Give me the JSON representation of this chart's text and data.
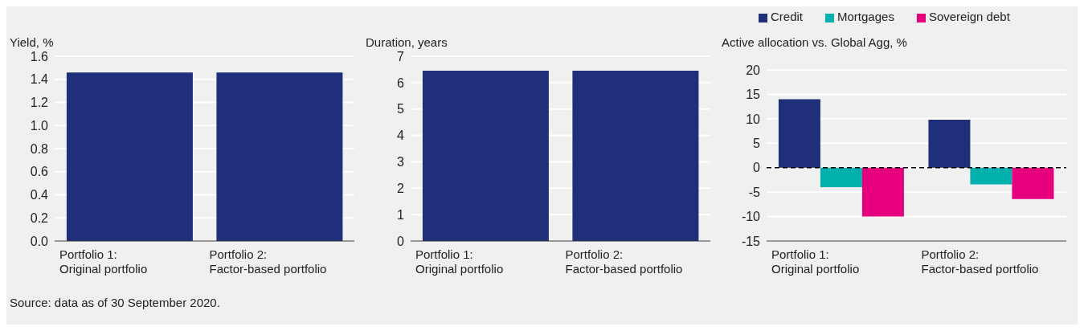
{
  "chart_data": [
    {
      "type": "bar",
      "ylabel": "Yield, %",
      "categories": [
        "Portfolio 1:\nOriginal portfolio",
        "Portfolio 2:\nFactor-based portfolio"
      ],
      "values": [
        1.46,
        1.46
      ],
      "color": "#1f2f7a",
      "ylim": [
        0,
        1.6
      ],
      "yticks": [
        {
          "value": 0,
          "label": "0.0"
        },
        {
          "value": 0.2,
          "label": "0.2"
        },
        {
          "value": 0.4,
          "label": "0.4"
        },
        {
          "value": 0.6,
          "label": "0.6"
        },
        {
          "value": 0.8,
          "label": "0.8"
        },
        {
          "value": 1,
          "label": "1.0"
        },
        {
          "value": 1.2,
          "label": "1.2"
        },
        {
          "value": 1.4,
          "label": "1.4"
        },
        {
          "value": 1.6,
          "label": "1.6"
        }
      ],
      "grid": "y",
      "annotations": [
        "Source: data as of 30 September 2020."
      ]
    },
    {
      "type": "bar",
      "ylabel": "Duration, years",
      "categories": [
        "Portfolio 1:\nOriginal portfolio",
        "Portfolio 2:\nFactor-based portfolio"
      ],
      "values": [
        6.45,
        6.45
      ],
      "color": "#1f2f7a",
      "ylim": [
        0,
        7
      ],
      "yticks": [
        0,
        1,
        2,
        3,
        4,
        5,
        6,
        7
      ],
      "grid": "y"
    },
    {
      "type": "bar",
      "ylabel": "Active allocation vs. Global Agg, %",
      "categories": [
        "Portfolio 1:\nOriginal portfolio",
        "Portfolio 2:\nFactor-based portfolio"
      ],
      "series": [
        {
          "name": "Credit",
          "color": "#1f2f7a",
          "values": [
            14,
            9.8
          ]
        },
        {
          "name": "Mortgages",
          "color": "#00b0ad",
          "values": [
            -4,
            -3.4
          ]
        },
        {
          "name": "Sovereign debt",
          "color": "#e6007e",
          "values": [
            -10,
            -6.4
          ]
        }
      ],
      "ylim": [
        -15,
        20
      ],
      "yticks": [
        -15,
        -10,
        -5,
        0,
        5,
        10,
        15,
        20
      ],
      "grid": "y",
      "legend": "top",
      "ref_lines": [
        {
          "axis": "y",
          "value": 0,
          "line_style": "dashed",
          "color": "#000000"
        }
      ]
    }
  ]
}
